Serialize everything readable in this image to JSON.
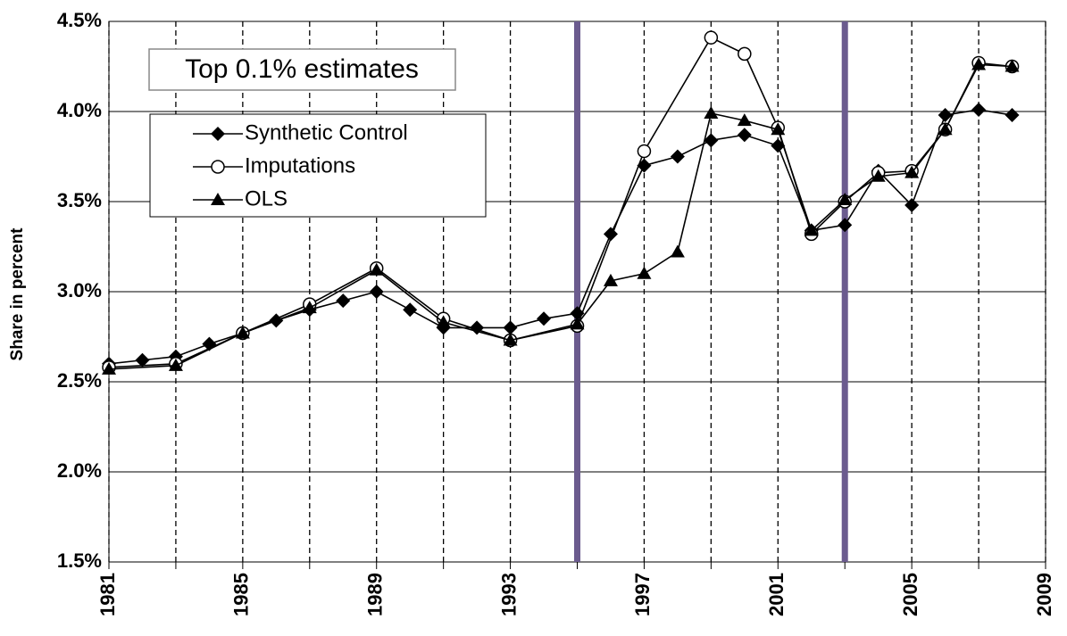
{
  "chart_data": {
    "type": "line",
    "title": "Top 0.1% estimates",
    "y_label": "Share in percent",
    "xlim": [
      1981,
      2009
    ],
    "xticks": [
      1981,
      1985,
      1989,
      1993,
      1997,
      2001,
      2005,
      2009
    ],
    "xminor_ticks": [
      1983,
      1987,
      1991,
      1995,
      1999,
      2003,
      2007
    ],
    "ylim": [
      1.5,
      4.5
    ],
    "yticks": [
      {
        "value": 1.5,
        "label": "1.5%"
      },
      {
        "value": 2.0,
        "label": "2.0%"
      },
      {
        "value": 2.5,
        "label": "2.5%"
      },
      {
        "value": 3.0,
        "label": "3.0%"
      },
      {
        "value": 3.5,
        "label": "3.5%"
      },
      {
        "value": 4.0,
        "label": "4.0%"
      },
      {
        "value": 4.5,
        "label": "4.5%"
      }
    ],
    "grid": true,
    "vertical_markers": [
      {
        "x": 1995,
        "color": "#6b5b8e"
      },
      {
        "x": 2003,
        "color": "#6b5b8e"
      }
    ],
    "legend": "upper left",
    "series": [
      {
        "name": "Synthetic Control",
        "color": "#000000",
        "marker": "diamond",
        "x": [
          1981,
          1982,
          1983,
          1984,
          1985,
          1986,
          1987,
          1988,
          1989,
          1990,
          1991,
          1992,
          1993,
          1994,
          1995,
          1996,
          1997,
          1998,
          1999,
          2000,
          2001,
          2002,
          2003,
          2004,
          2005,
          2006,
          2007,
          2008
        ],
        "values": [
          2.6,
          2.62,
          2.64,
          2.71,
          2.77,
          2.84,
          2.9,
          2.95,
          3.0,
          2.9,
          2.8,
          2.8,
          2.8,
          2.85,
          2.88,
          3.32,
          3.7,
          3.75,
          3.84,
          3.87,
          3.81,
          3.34,
          3.37,
          3.67,
          3.48,
          3.98,
          4.01,
          3.98
        ]
      },
      {
        "name": "Imputations",
        "color": "#000000",
        "marker": "circle",
        "x": [
          1981,
          1983,
          1985,
          1987,
          1989,
          1991,
          1993,
          1995,
          1997,
          1999,
          2000,
          2001,
          2002,
          2003,
          2004,
          2005,
          2006,
          2007,
          2008
        ],
        "values": [
          2.58,
          2.6,
          2.77,
          2.93,
          3.13,
          2.85,
          2.73,
          2.81,
          3.78,
          4.41,
          4.32,
          3.91,
          3.32,
          3.5,
          3.66,
          3.67,
          3.9,
          4.27,
          4.25
        ]
      },
      {
        "name": "OLS",
        "color": "#000000",
        "marker": "triangle",
        "x": [
          1981,
          1983,
          1985,
          1987,
          1989,
          1991,
          1993,
          1995,
          1996,
          1997,
          1998,
          1999,
          2000,
          2001,
          2002,
          2003,
          2004,
          2005,
          2006,
          2007,
          2008
        ],
        "values": [
          2.57,
          2.59,
          2.77,
          2.91,
          3.12,
          2.83,
          2.73,
          2.82,
          3.06,
          3.1,
          3.22,
          3.99,
          3.95,
          3.9,
          3.34,
          3.51,
          3.64,
          3.66,
          3.9,
          4.26,
          4.25
        ]
      }
    ]
  }
}
